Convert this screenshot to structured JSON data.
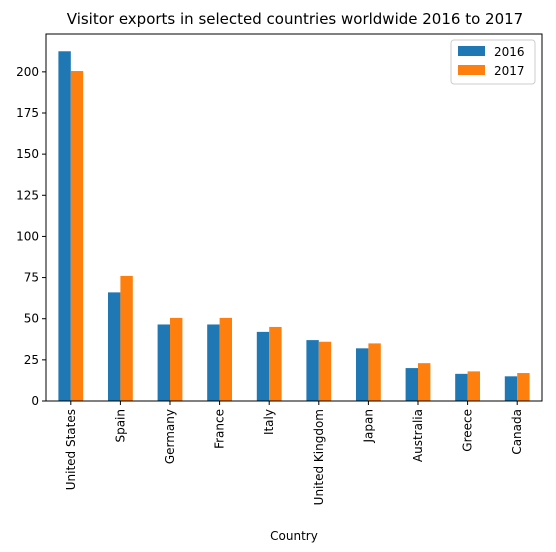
{
  "chart_data": {
    "type": "bar",
    "title": "Visitor exports in selected countries worldwide 2016 to 2017",
    "xlabel": "Country",
    "ylabel": "",
    "categories": [
      "United States",
      "Spain",
      "Germany",
      "France",
      "Italy",
      "United Kingdom",
      "Japan",
      "Australia",
      "Greece",
      "Canada"
    ],
    "series": [
      {
        "name": "2016",
        "color": "#1f77b4",
        "values": [
          212.5,
          66,
          46.5,
          46.5,
          42,
          37,
          32,
          20,
          16.5,
          15
        ]
      },
      {
        "name": "2017",
        "color": "#ff7f0e",
        "values": [
          200.5,
          76,
          50.5,
          50.5,
          45,
          36,
          35,
          23,
          18,
          17
        ]
      }
    ],
    "yticks": [
      0,
      25,
      50,
      75,
      100,
      125,
      150,
      175,
      200
    ],
    "ylim": [
      0,
      223
    ],
    "grid": false,
    "legend_position": "top-right"
  }
}
